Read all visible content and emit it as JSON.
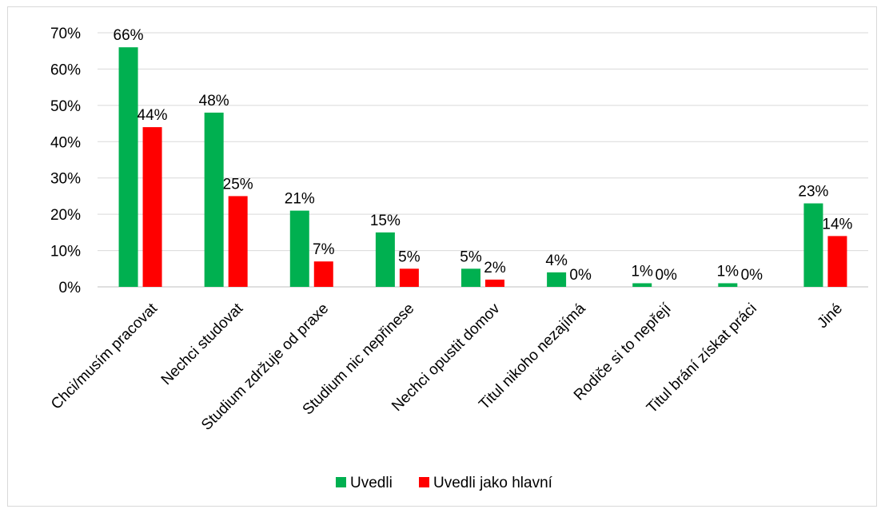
{
  "chart_data": {
    "type": "bar",
    "title": "",
    "xlabel": "",
    "ylabel": "",
    "ylim": [
      0,
      0.7
    ],
    "y_ticks": [
      "0%",
      "10%",
      "20%",
      "30%",
      "40%",
      "50%",
      "60%",
      "70%"
    ],
    "grid": true,
    "legend_position": "bottom",
    "categories": [
      "Chci/musím pracovat",
      "Nechci studovat",
      "Studium zdržuje od praxe",
      "Studium nic nepřinese",
      "Nechci opustit domov",
      "Titul nikoho nezajímá",
      "Rodiče si to nepřejí",
      "Titul brání získat práci",
      "Jiné"
    ],
    "series": [
      {
        "name": "Uvedli",
        "color": "#00b050",
        "values": [
          0.66,
          0.48,
          0.21,
          0.15,
          0.05,
          0.04,
          0.01,
          0.01,
          0.23
        ],
        "labels": [
          "66%",
          "48%",
          "21%",
          "15%",
          "5%",
          "4%",
          "1%",
          "1%",
          "23%"
        ]
      },
      {
        "name": "Uvedli jako hlavní",
        "color": "#ff0000",
        "values": [
          0.44,
          0.25,
          0.07,
          0.05,
          0.02,
          0.0,
          0.0,
          0.0,
          0.14
        ],
        "labels": [
          "44%",
          "25%",
          "7%",
          "5%",
          "2%",
          "0%",
          "0%",
          "0%",
          "14%"
        ]
      }
    ]
  }
}
